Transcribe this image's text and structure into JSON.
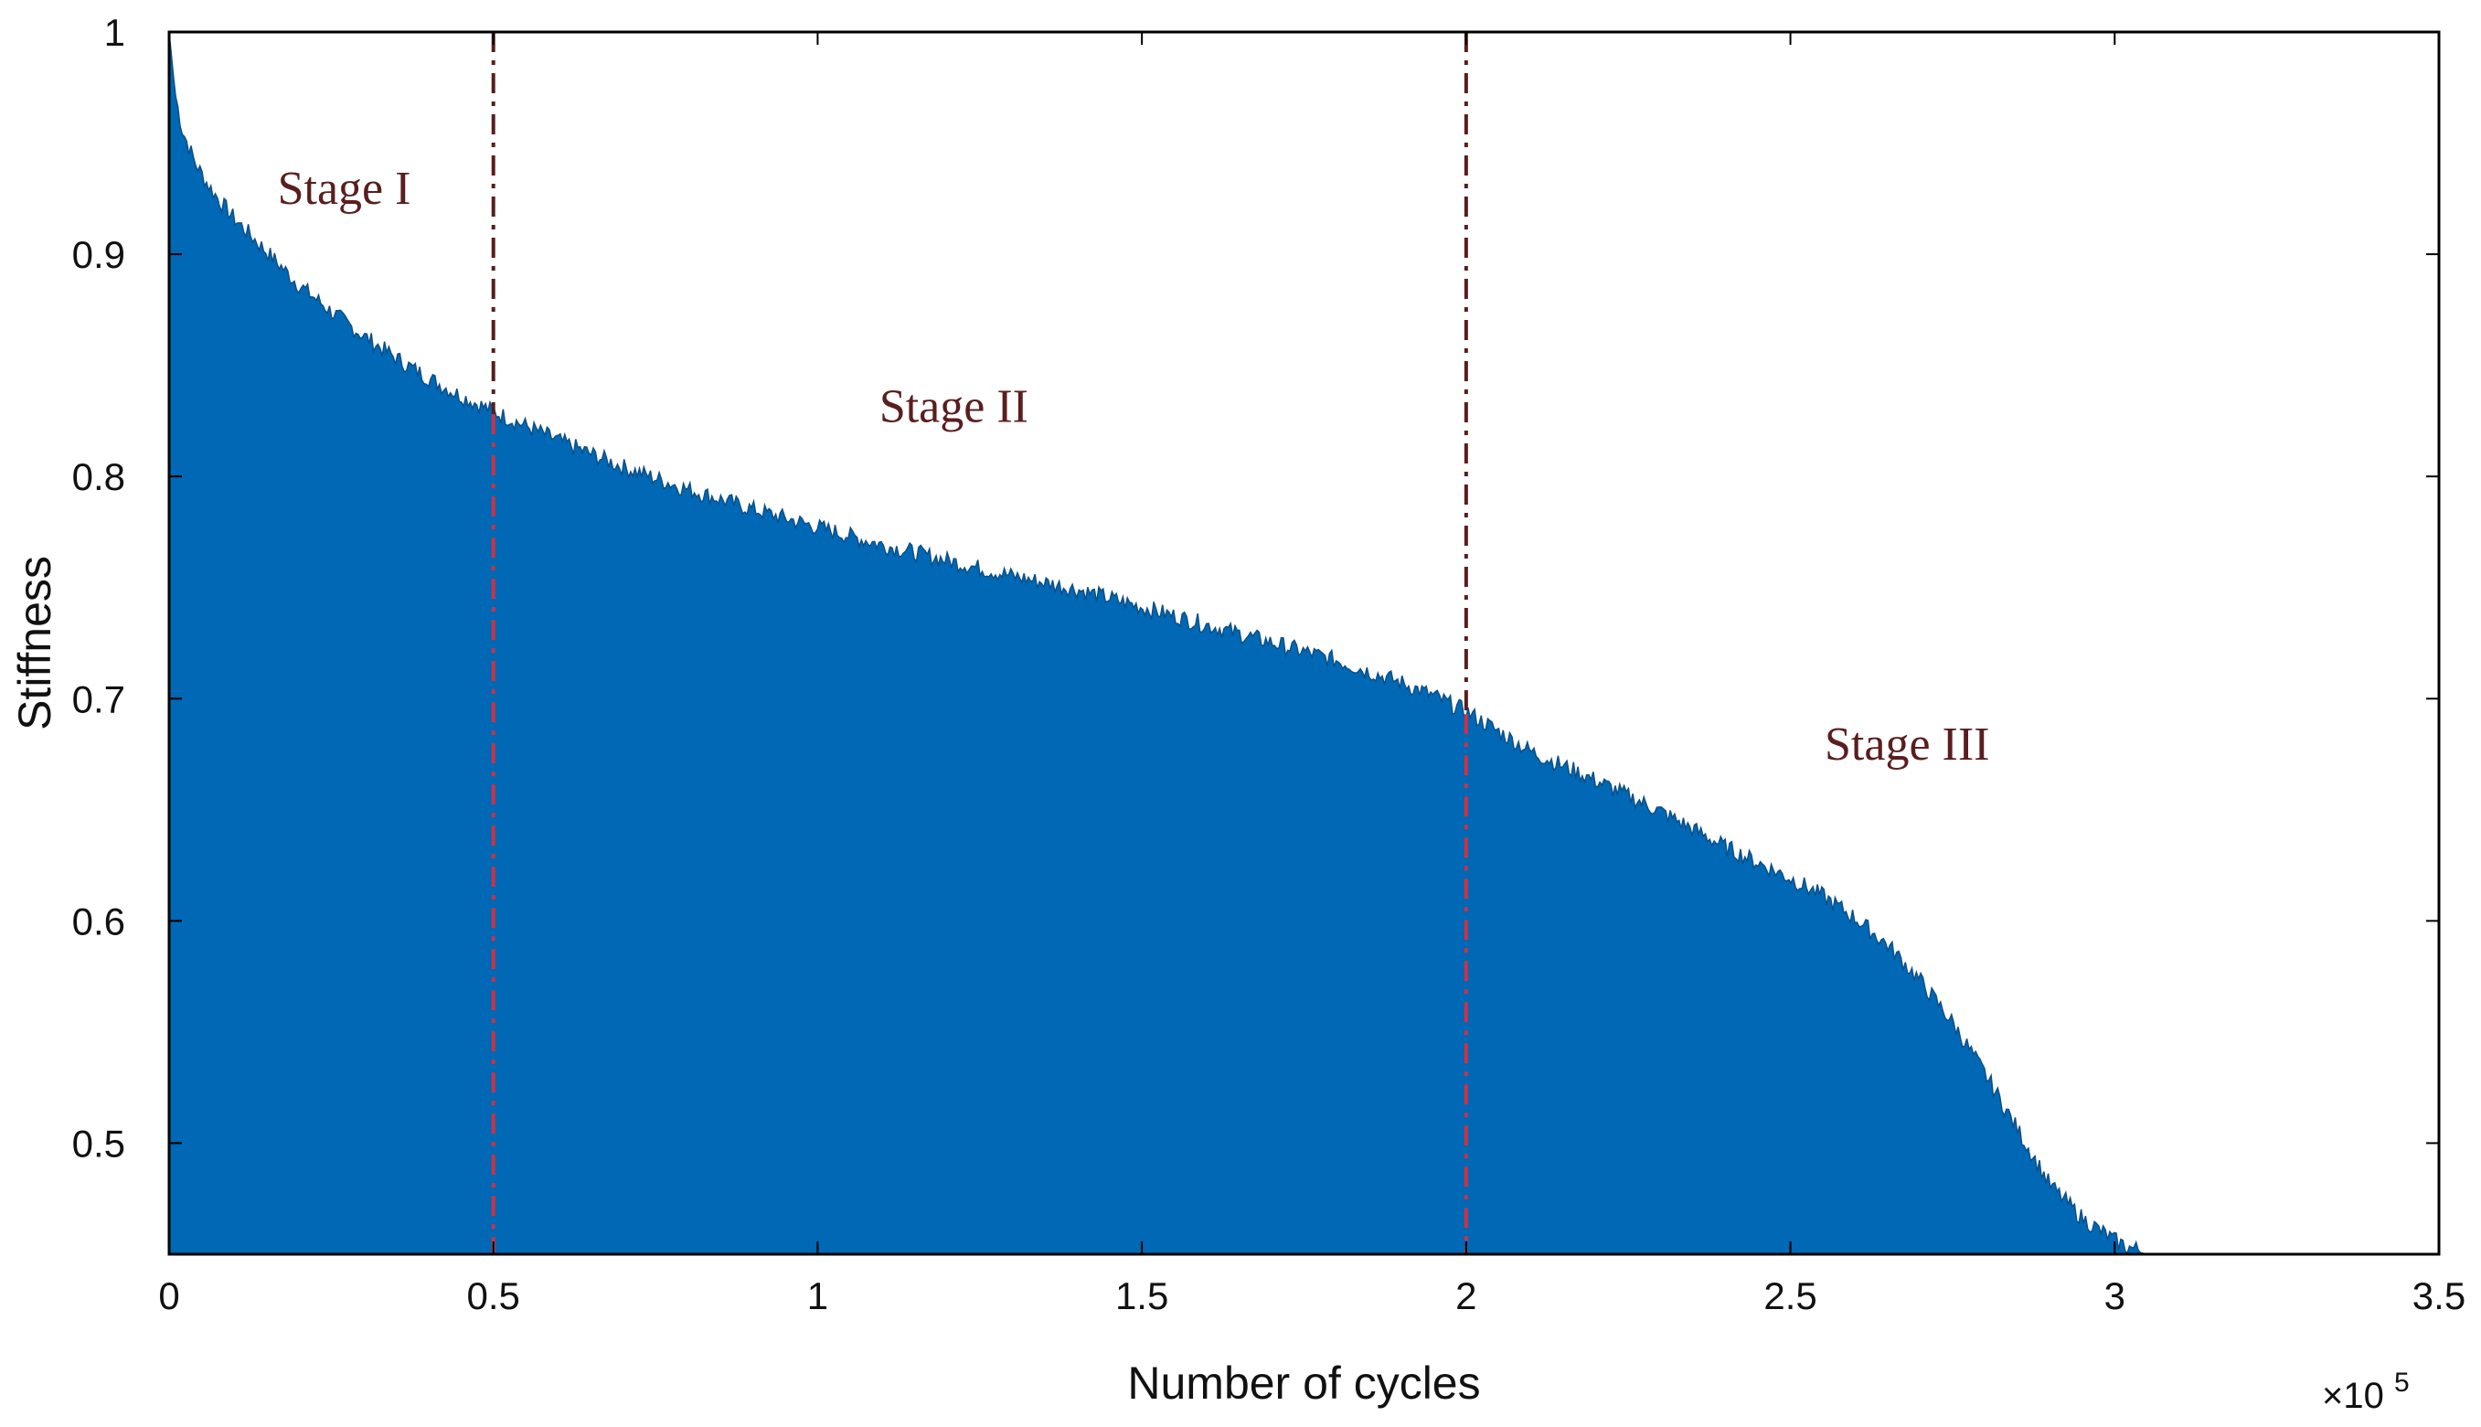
{
  "chart_data": {
    "type": "area",
    "title": "",
    "xlabel": "Number of cycles",
    "ylabel": "Stiffness",
    "x_multiplier_label": "×10",
    "x_multiplier_exponent": "5",
    "xlim": [
      0,
      3.5
    ],
    "ylim": [
      0.45,
      1.0
    ],
    "xticks": [
      0,
      0.5,
      1,
      1.5,
      2,
      2.5,
      3,
      3.5
    ],
    "xtick_labels": [
      "0",
      "0.5",
      "1",
      "1.5",
      "2",
      "2.5",
      "3",
      "3.5"
    ],
    "yticks": [
      0.5,
      0.6,
      0.7,
      0.8,
      0.9,
      1.0
    ],
    "ytick_labels": [
      "0.5",
      "0.6",
      "0.7",
      "0.8",
      "0.9",
      "1"
    ],
    "grid": false,
    "legend": "none",
    "fill_color": "#0068b4",
    "series": [
      {
        "x": [
          0,
          0.01,
          0.02,
          0.04,
          0.06,
          0.08,
          0.1,
          0.15,
          0.2,
          0.25,
          0.3,
          0.35,
          0.4,
          0.45,
          0.5,
          0.6,
          0.7,
          0.8,
          0.9,
          1.0,
          1.1,
          1.2,
          1.3,
          1.4,
          1.5,
          1.6,
          1.7,
          1.8,
          1.9,
          1.95,
          2.0,
          2.1,
          2.2,
          2.3,
          2.4,
          2.5,
          2.55,
          2.6,
          2.65,
          2.7,
          2.75,
          2.8,
          2.85,
          2.9,
          2.95,
          3.0,
          3.02,
          3.05
        ],
        "y": [
          1.0,
          0.97,
          0.955,
          0.94,
          0.93,
          0.922,
          0.915,
          0.9,
          0.885,
          0.873,
          0.862,
          0.852,
          0.843,
          0.835,
          0.828,
          0.815,
          0.803,
          0.793,
          0.784,
          0.776,
          0.768,
          0.761,
          0.754,
          0.748,
          0.74,
          0.732,
          0.724,
          0.716,
          0.706,
          0.7,
          0.693,
          0.675,
          0.662,
          0.648,
          0.632,
          0.618,
          0.61,
          0.6,
          0.588,
          0.572,
          0.553,
          0.53,
          0.505,
          0.48,
          0.465,
          0.455,
          0.452,
          0.45
        ]
      }
    ],
    "vlines": [
      0.5,
      2.0
    ],
    "vline_color_upper": "#5a1e1e",
    "vline_color_lower": "#cc3344",
    "annotations": [
      {
        "text": "Stage I",
        "x": 0.27,
        "y": 0.93
      },
      {
        "text": "Stage II",
        "x": 1.21,
        "y": 0.832
      },
      {
        "text": "Stage III",
        "x": 2.68,
        "y": 0.68
      }
    ],
    "annotation_color": "#5a1e1e"
  }
}
